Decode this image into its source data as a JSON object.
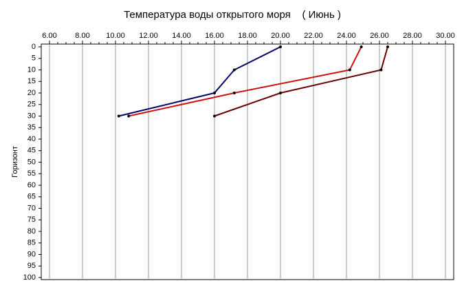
{
  "chart_data": {
    "type": "line",
    "title": "Температура воды открытого моря    ( Июнь )",
    "y_label": "Горизонт",
    "y": [
      0,
      10,
      20,
      30
    ],
    "series": [
      {
        "color": "#000066",
        "values": [
          20.0,
          17.2,
          16.0,
          10.2
        ]
      },
      {
        "color": "#cc1111",
        "values": [
          24.9,
          24.2,
          17.2,
          10.8
        ]
      },
      {
        "color": "#660000",
        "values": [
          26.5,
          26.1,
          20.0,
          16.0
        ]
      }
    ],
    "xlim": [
      5.5,
      30.5
    ],
    "xticks": [
      {
        "value": 6,
        "label": "6.00"
      },
      {
        "value": 8,
        "label": "8.00"
      },
      {
        "value": 10,
        "label": "10.00"
      },
      {
        "value": 12,
        "label": "12.00"
      },
      {
        "value": 14,
        "label": "14.00"
      },
      {
        "value": 16,
        "label": "16.00"
      },
      {
        "value": 18,
        "label": "18.00"
      },
      {
        "value": 20,
        "label": "20.00"
      },
      {
        "value": 22,
        "label": "22.00"
      },
      {
        "value": 24,
        "label": "24.00"
      },
      {
        "value": 26,
        "label": "26.00"
      },
      {
        "value": 28,
        "label": "28.00"
      },
      {
        "value": 30,
        "label": "30.00"
      }
    ],
    "ylim": [
      0,
      100
    ],
    "yticks": [
      0,
      5,
      10,
      15,
      20,
      25,
      30,
      35,
      40,
      45,
      50,
      55,
      60,
      65,
      70,
      75,
      80,
      85,
      90,
      95,
      100
    ],
    "y_inverted": true,
    "x_axis_position": "top",
    "grid": true
  }
}
